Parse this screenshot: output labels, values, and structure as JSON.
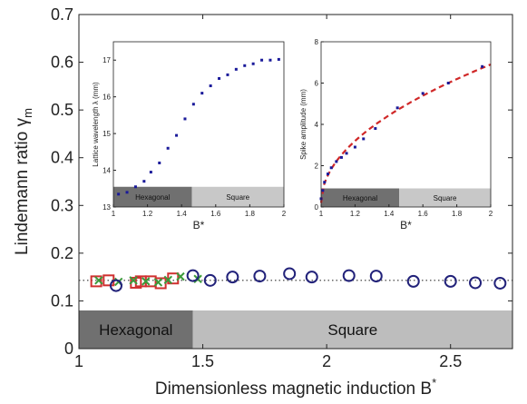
{
  "chart_data": [
    {
      "type": "scatter",
      "xlabel": "Dimensionless magnetic induction B",
      "xlabel_superscript": "*",
      "ylabel": "Lindemann ratio γ",
      "ylabel_subscript": "m",
      "xlim": [
        1,
        2.75
      ],
      "ylim": [
        0,
        0.7
      ],
      "x_ticks": [
        "1",
        "1.5",
        "2",
        "2.5"
      ],
      "y_ticks": [
        "0",
        "0.1",
        "0.2",
        "0.3",
        "0.4",
        "0.5",
        "0.6",
        "0.7"
      ],
      "reference_line": 0.143,
      "regions": [
        {
          "label": "Hexagonal",
          "from": 1,
          "to": 1.46,
          "color": "#707070"
        },
        {
          "label": "Square",
          "from": 1.46,
          "to": 2.75,
          "color": "#bdbdbd"
        }
      ],
      "region_band_height": 0.08,
      "series": [
        {
          "marker": "square",
          "color": "#d03030",
          "x": [
            1.07,
            1.12,
            1.23,
            1.25,
            1.29,
            1.33,
            1.38
          ],
          "y": [
            0.141,
            0.143,
            0.138,
            0.141,
            0.141,
            0.137,
            0.147
          ]
        },
        {
          "marker": "cross",
          "color": "#3a9a3a",
          "x": [
            1.08,
            1.16,
            1.22,
            1.27,
            1.32,
            1.36,
            1.41,
            1.48
          ],
          "y": [
            0.143,
            0.14,
            0.143,
            0.141,
            0.139,
            0.144,
            0.151,
            0.146
          ]
        },
        {
          "marker": "circle",
          "color": "#22227a",
          "x": [
            1.15,
            1.46,
            1.53,
            1.62,
            1.73,
            1.85,
            1.94,
            2.09,
            2.2,
            2.35,
            2.5,
            2.6,
            2.7
          ],
          "y": [
            0.132,
            0.153,
            0.143,
            0.15,
            0.152,
            0.157,
            0.15,
            0.153,
            0.152,
            0.141,
            0.141,
            0.138,
            0.137
          ]
        }
      ]
    },
    {
      "type": "scatter",
      "xlabel": "B*",
      "ylabel": "Lattice wavelength λ (mm)",
      "xlim": [
        1,
        2
      ],
      "ylim": [
        13,
        17.5
      ],
      "x_ticks": [
        "1",
        "1.2",
        "1.4",
        "1.6",
        "1.8",
        "2"
      ],
      "y_ticks": [
        "13",
        "14",
        "15",
        "16",
        "17"
      ],
      "regions": [
        {
          "label": "Hexagonal",
          "from": 1,
          "to": 1.46,
          "color": "#707070"
        },
        {
          "label": "Square",
          "from": 1.46,
          "to": 2,
          "color": "#c8c8c8"
        }
      ],
      "region_band_height": 0.55,
      "series": [
        {
          "marker": "square-small",
          "color": "#1a1a9a",
          "x": [
            1.03,
            1.08,
            1.13,
            1.18,
            1.22,
            1.27,
            1.32,
            1.37,
            1.42,
            1.47,
            1.52,
            1.57,
            1.62,
            1.67,
            1.72,
            1.77,
            1.82,
            1.87,
            1.92,
            1.97
          ],
          "y": [
            13.35,
            13.4,
            13.55,
            13.7,
            13.95,
            14.2,
            14.6,
            14.95,
            15.4,
            15.8,
            16.1,
            16.3,
            16.5,
            16.6,
            16.75,
            16.85,
            16.9,
            17.0,
            17.0,
            17.02
          ]
        }
      ]
    },
    {
      "type": "scatter",
      "xlabel": "B*",
      "ylabel": "Spike amplitude (mm)",
      "xlim": [
        1,
        2
      ],
      "ylim": [
        0,
        8
      ],
      "x_ticks": [
        "1",
        "1.2",
        "1.4",
        "1.6",
        "1.8",
        "2"
      ],
      "y_ticks": [
        "0",
        "2",
        "4",
        "6",
        "8"
      ],
      "regions": [
        {
          "label": "Hexagonal",
          "from": 1,
          "to": 1.46,
          "color": "#707070"
        },
        {
          "label": "Square",
          "from": 1.46,
          "to": 2,
          "color": "#c8c8c8"
        }
      ],
      "region_band_height": 0.9,
      "fit_curve": {
        "style": "dashed",
        "color": "#d02828",
        "x0": 1,
        "y0": 0.2,
        "coef": 6.7
      },
      "series": [
        {
          "marker": "square-small",
          "color": "#1a1a9a",
          "x": [
            1.0,
            1.01,
            1.02,
            1.04,
            1.06,
            1.09,
            1.12,
            1.15,
            1.2,
            1.25,
            1.32,
            1.45,
            1.6,
            1.75,
            1.95
          ],
          "y": [
            0.4,
            0.8,
            1.2,
            1.6,
            1.9,
            2.2,
            2.4,
            2.6,
            2.9,
            3.3,
            3.8,
            4.8,
            5.5,
            6.0,
            6.8
          ]
        }
      ]
    }
  ]
}
